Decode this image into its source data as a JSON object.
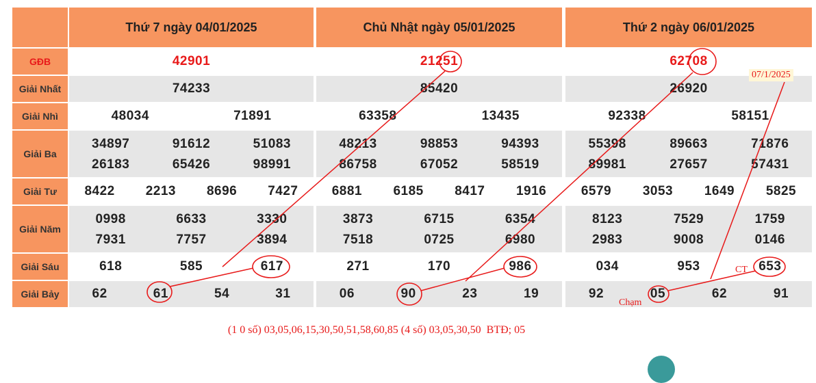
{
  "headers": [
    "Thứ 7 ngày 04/01/2025",
    "Chủ Nhật ngày 05/01/2025",
    "Thứ 2 ngày 06/01/2025"
  ],
  "labels": [
    "GĐB",
    "Giải Nhất",
    "Giải Nhì",
    "Giải Ba",
    "Giải Tư",
    "Giải Năm",
    "Giải Sáu",
    "Giải Bảy"
  ],
  "days": [
    {
      "gdb": "42901",
      "nhat": "74233",
      "nhi": [
        "48034",
        "71891"
      ],
      "ba": [
        "34897",
        "91612",
        "51083",
        "26183",
        "65426",
        "98991"
      ],
      "tu": [
        "8422",
        "2213",
        "8696",
        "7427"
      ],
      "nam": [
        "0998",
        "6633",
        "3330",
        "7931",
        "7757",
        "3894"
      ],
      "sau": [
        "618",
        "585",
        "617"
      ],
      "bay": [
        "62",
        "61",
        "54",
        "31"
      ]
    },
    {
      "gdb": "21251",
      "nhat": "85420",
      "nhi": [
        "63358",
        "13435"
      ],
      "ba": [
        "48213",
        "98853",
        "94393",
        "86758",
        "67052",
        "58519"
      ],
      "tu": [
        "6881",
        "6185",
        "8417",
        "1916"
      ],
      "nam": [
        "3873",
        "6715",
        "6354",
        "7518",
        "0725",
        "6980"
      ],
      "sau": [
        "271",
        "170",
        "986"
      ],
      "bay": [
        "06",
        "90",
        "23",
        "19"
      ]
    },
    {
      "gdb": "62708",
      "nhat": "26920",
      "nhi": [
        "92338",
        "58151"
      ],
      "ba": [
        "55398",
        "89663",
        "71876",
        "89981",
        "27657",
        "57431"
      ],
      "tu": [
        "6579",
        "3053",
        "1649",
        "5825"
      ],
      "nam": [
        "8123",
        "7529",
        "1759",
        "2983",
        "9008",
        "0146"
      ],
      "sau": [
        "034",
        "953",
        "653"
      ],
      "bay": [
        "92",
        "05",
        "62",
        "91"
      ]
    }
  ],
  "notes": {
    "date": "07/1/2025",
    "ct": "CT",
    "cham": "Chạm"
  },
  "footer": "(1 0 số) 03,05,06,15,30,50,51,58,60,85 (4 số) 03,05,30,50  BTĐ; 05",
  "colors": {
    "header_bg": "#f7955f",
    "accent_red": "#e81a1a",
    "row_gray": "#e6e6e6"
  }
}
